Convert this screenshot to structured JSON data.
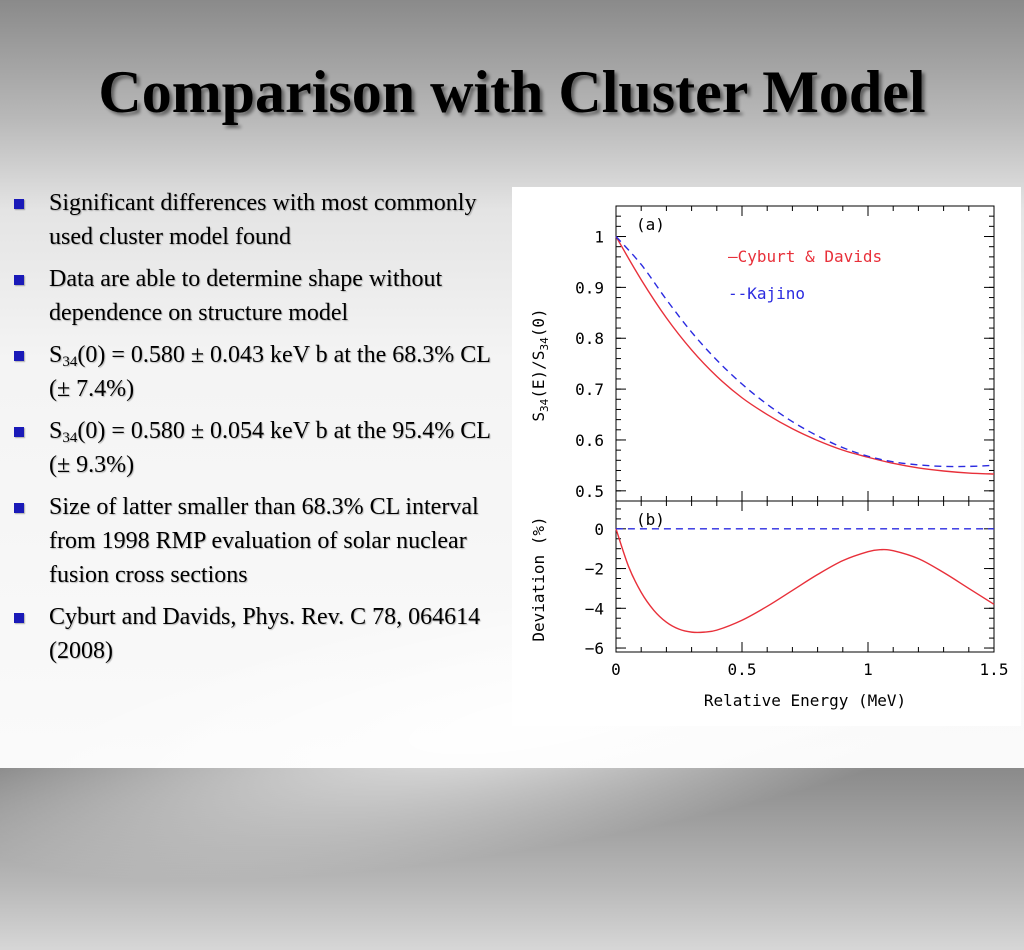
{
  "slide": {
    "title": "Comparison with Cluster Model",
    "bullets": [
      {
        "text": "Significant differences with most commonly used cluster model found"
      },
      {
        "text": "Data are able to determine shape without dependence on structure model"
      },
      {
        "text_pre": "S",
        "sub": "34",
        "text_post": "(0) = 0.580 ± 0.043 keV b  at the 68.3% CL (± 7.4%)"
      },
      {
        "text_pre": "S",
        "sub": "34",
        "text_post": "(0) = 0.580 ± 0.054 keV b at the 95.4% CL (± 9.3%)"
      },
      {
        "text": "Size of latter smaller than 68.3% CL interval from 1998 RMP evaluation of solar nuclear fusion cross sections"
      },
      {
        "text": "Cyburt and Davids, Phys. Rev. C 78, 064614 (2008)"
      }
    ],
    "colors": {
      "bullet": "#1a1ab8",
      "series_red": "#e8303a",
      "series_blue": "#2b2be0"
    }
  },
  "chart_data": [
    {
      "type": "line",
      "panel_label": "(a)",
      "xlabel": "Relative Energy (MeV)",
      "ylabel": {
        "pre": "S",
        "sub1": "34",
        "mid": "(E)/S",
        "sub2": "34",
        "post": "(0)"
      },
      "xlim": [
        0,
        1.5
      ],
      "ylim": [
        0.48,
        1.06
      ],
      "yticks": [
        {
          "v": 0.5,
          "label": "0.5"
        },
        {
          "v": 0.6,
          "label": "0.6"
        },
        {
          "v": 0.7,
          "label": "0.7"
        },
        {
          "v": 0.8,
          "label": "0.8"
        },
        {
          "v": 0.9,
          "label": "0.9"
        },
        {
          "v": 1.0,
          "label": "1"
        }
      ],
      "legend_position": "top-right",
      "series": [
        {
          "name": "Cyburt & Davids",
          "legend_label": "—Cyburt & Davids",
          "style": "solid",
          "color": "#e8303a",
          "x": [
            0,
            0.1,
            0.2,
            0.3,
            0.4,
            0.5,
            0.6,
            0.7,
            0.8,
            0.9,
            1.0,
            1.1,
            1.2,
            1.3,
            1.4,
            1.5
          ],
          "y": [
            1.0,
            0.915,
            0.84,
            0.777,
            0.725,
            0.683,
            0.65,
            0.622,
            0.599,
            0.58,
            0.566,
            0.554,
            0.545,
            0.539,
            0.535,
            0.533
          ]
        },
        {
          "name": "Kajino",
          "legend_label": "--Kajino",
          "style": "dashed",
          "color": "#2b2be0",
          "x": [
            0,
            0.1,
            0.2,
            0.3,
            0.4,
            0.5,
            0.6,
            0.7,
            0.8,
            0.9,
            1.0,
            1.1,
            1.2,
            1.3,
            1.4,
            1.5
          ],
          "y": [
            1.0,
            0.945,
            0.876,
            0.812,
            0.757,
            0.71,
            0.67,
            0.636,
            0.608,
            0.585,
            0.568,
            0.557,
            0.551,
            0.548,
            0.548,
            0.55
          ]
        }
      ]
    },
    {
      "type": "line",
      "panel_label": "(b)",
      "xlabel": "Relative Energy (MeV)",
      "ylabel": "Deviation (%)",
      "xlim": [
        0,
        1.5
      ],
      "ylim": [
        -6.2,
        1.4
      ],
      "xticks": [
        {
          "v": 0,
          "label": "0"
        },
        {
          "v": 0.5,
          "label": "0.5"
        },
        {
          "v": 1.0,
          "label": "1"
        },
        {
          "v": 1.5,
          "label": "1.5"
        }
      ],
      "yticks": [
        {
          "v": -6,
          "label": "−6"
        },
        {
          "v": -4,
          "label": "−4"
        },
        {
          "v": -2,
          "label": "−2"
        },
        {
          "v": 0,
          "label": "0"
        }
      ],
      "series": [
        {
          "name": "Cyburt & Davids",
          "style": "solid",
          "color": "#e8303a",
          "x": [
            0,
            0.05,
            0.1,
            0.15,
            0.2,
            0.25,
            0.3,
            0.35,
            0.4,
            0.5,
            0.6,
            0.7,
            0.8,
            0.9,
            1.0,
            1.05,
            1.1,
            1.2,
            1.3,
            1.4,
            1.5
          ],
          "y": [
            0,
            -1.9,
            -3.2,
            -4.1,
            -4.7,
            -5.05,
            -5.2,
            -5.2,
            -5.1,
            -4.6,
            -3.9,
            -3.1,
            -2.3,
            -1.6,
            -1.15,
            -1.05,
            -1.1,
            -1.5,
            -2.2,
            -3.0,
            -3.8
          ]
        },
        {
          "name": "Kajino",
          "style": "dashed",
          "color": "#2b2be0",
          "x": [
            0,
            1.5
          ],
          "y": [
            0,
            0
          ]
        }
      ]
    }
  ]
}
